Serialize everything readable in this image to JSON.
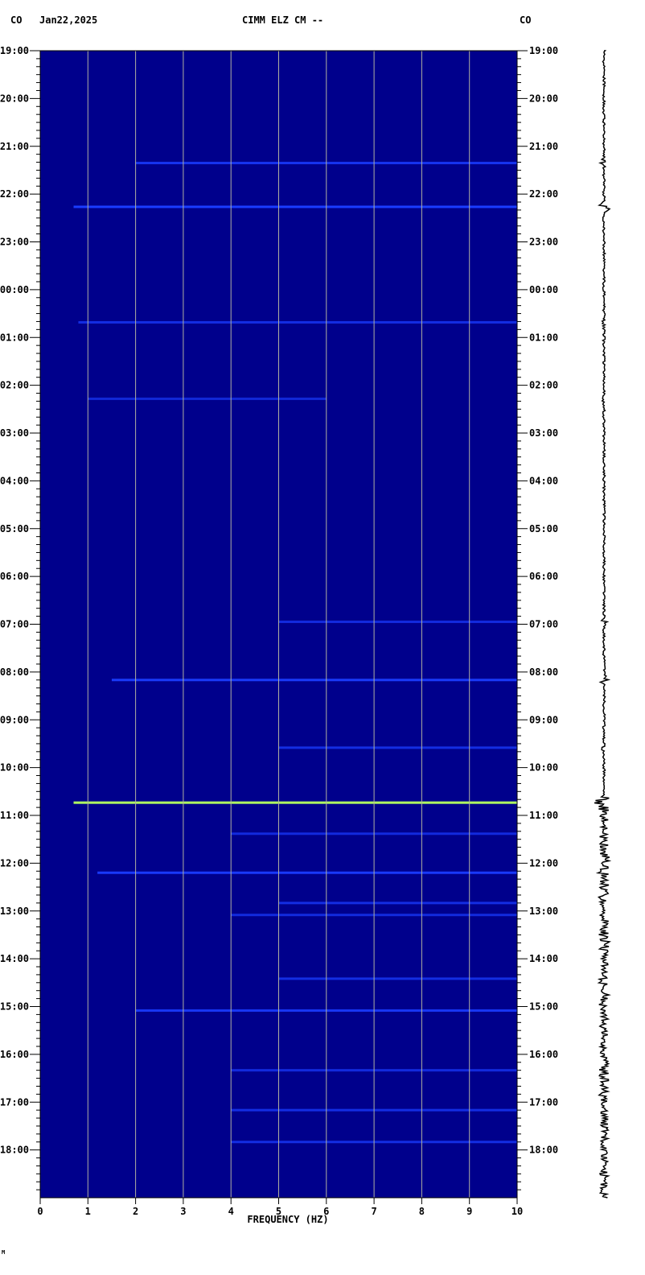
{
  "header": {
    "left_network": "CO",
    "date": "Jan22,2025",
    "station": "CIMM ELZ CM --",
    "right_network": "CO"
  },
  "footer_mark": "M",
  "colors": {
    "background": "#00008c",
    "gridline": "#b0b0a0",
    "event_low": "#1a3cff",
    "event_high": "#b0ff60",
    "trace": "#000000"
  },
  "chart_data": {
    "type": "heatmap",
    "subtype": "spectrogram",
    "xlabel": "FREQUENCY (HZ)",
    "xlim": [
      0,
      10
    ],
    "x_ticks": [
      "0",
      "1",
      "2",
      "3",
      "4",
      "5",
      "6",
      "7",
      "8",
      "9",
      "10"
    ],
    "y_ticks": [
      "19:00",
      "20:00",
      "21:00",
      "22:00",
      "23:00",
      "00:00",
      "01:00",
      "02:00",
      "03:00",
      "04:00",
      "05:00",
      "06:00",
      "07:00",
      "08:00",
      "09:00",
      "10:00",
      "11:00",
      "12:00",
      "13:00",
      "14:00",
      "15:00",
      "16:00",
      "17:00",
      "18:00"
    ],
    "grid": true,
    "events": [
      {
        "time": "21:21",
        "fmin": 2,
        "fmax": 10,
        "intensity": 0.45
      },
      {
        "time": "22:16",
        "fmin": 0.7,
        "fmax": 10,
        "intensity": 0.75
      },
      {
        "time": "00:41",
        "fmin": 0.8,
        "fmax": 10,
        "intensity": 0.35
      },
      {
        "time": "02:17",
        "fmin": 1,
        "fmax": 6,
        "intensity": 0.25
      },
      {
        "time": "06:57",
        "fmin": 5,
        "fmax": 10,
        "intensity": 0.3
      },
      {
        "time": "08:10",
        "fmin": 1.5,
        "fmax": 10,
        "intensity": 0.55
      },
      {
        "time": "09:35",
        "fmin": 5,
        "fmax": 10,
        "intensity": 0.35
      },
      {
        "time": "10:44",
        "fmin": 0.7,
        "fmax": 10,
        "intensity": 1.0
      },
      {
        "time": "11:23",
        "fmin": 4,
        "fmax": 10,
        "intensity": 0.3
      },
      {
        "time": "12:12",
        "fmin": 1.2,
        "fmax": 10,
        "intensity": 0.55
      },
      {
        "time": "12:50",
        "fmin": 5,
        "fmax": 10,
        "intensity": 0.35
      },
      {
        "time": "13:05",
        "fmin": 4,
        "fmax": 10,
        "intensity": 0.3
      },
      {
        "time": "14:25",
        "fmin": 5,
        "fmax": 10,
        "intensity": 0.35
      },
      {
        "time": "15:05",
        "fmin": 2,
        "fmax": 10,
        "intensity": 0.5
      },
      {
        "time": "16:20",
        "fmin": 4,
        "fmax": 10,
        "intensity": 0.3
      },
      {
        "time": "17:10",
        "fmin": 4,
        "fmax": 10,
        "intensity": 0.35
      },
      {
        "time": "17:50",
        "fmin": 4,
        "fmax": 10,
        "intensity": 0.35
      }
    ]
  }
}
